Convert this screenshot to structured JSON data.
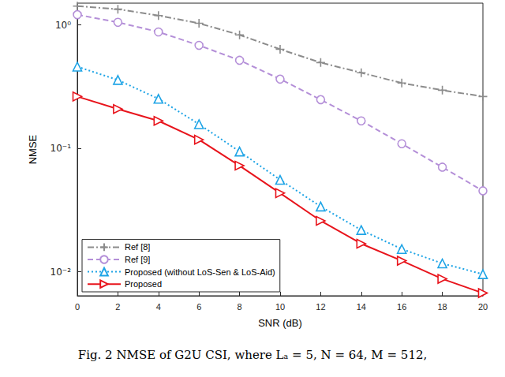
{
  "chart_data": {
    "type": "line",
    "title": "Fig. 2 NMSE of G2U CSI, where Lₐ = 5, N = 64, M = 512,",
    "x_label": "SNR (dB)",
    "y_label": "NMSE",
    "log": "y",
    "grid": false,
    "legend": "lower left",
    "x": [
      0,
      2,
      4,
      6,
      8,
      10,
      12,
      14,
      16,
      18,
      20
    ],
    "xlim": [
      0,
      20
    ],
    "xticks": [
      0,
      2,
      4,
      6,
      8,
      10,
      12,
      14,
      16,
      18,
      20
    ],
    "ylim": [
      0.0064,
      1.5
    ],
    "yticks": [
      {
        "value": 0.01,
        "label": "10⁻²"
      },
      {
        "value": 0.1,
        "label": "10⁻¹"
      },
      {
        "value": 1,
        "label": "10⁰"
      }
    ],
    "series": [
      {
        "name": "Ref [8]",
        "color": "#8c8c8c",
        "marker": "plus",
        "line_style": "dashdot",
        "values": [
          1.42,
          1.34,
          1.19,
          1.03,
          0.83,
          0.635,
          0.495,
          0.41,
          0.338,
          0.296,
          0.263
        ]
      },
      {
        "name": "Ref [9]",
        "color": "#b48fd8",
        "marker": "circle",
        "line_style": "dashed",
        "values": [
          1.21,
          1.05,
          0.877,
          0.683,
          0.517,
          0.364,
          0.248,
          0.167,
          0.109,
          0.0704,
          0.0453
        ]
      },
      {
        "name": "Proposed (without LoS-Sen & LoS-Aid)",
        "color": "#1ea4e6",
        "marker": "triangle",
        "line_style": "dotted",
        "values": [
          0.459,
          0.358,
          0.252,
          0.157,
          0.0943,
          0.0556,
          0.0338,
          0.0218,
          0.0153,
          0.0117,
          0.00957
        ]
      },
      {
        "name": "Proposed",
        "color": "#e8141c",
        "marker": "triangle-right",
        "line_style": "solid",
        "values": [
          0.263,
          0.208,
          0.167,
          0.1175,
          0.0724,
          0.0434,
          0.0259,
          0.0169,
          0.0123,
          0.00877,
          0.00673
        ]
      }
    ]
  }
}
